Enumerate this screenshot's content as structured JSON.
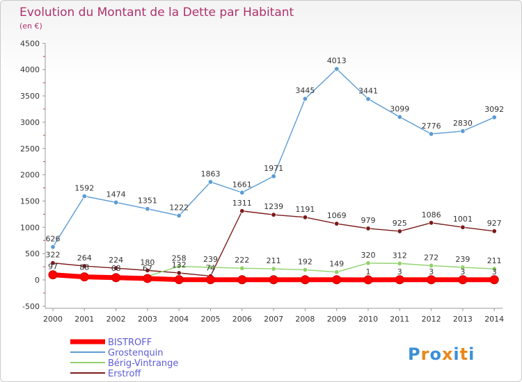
{
  "chart_data": {
    "type": "line",
    "title": "Evolution du Montant de la Dette par Habitant",
    "subtitle": "(en €)",
    "xlabel": "",
    "ylabel": "",
    "categories": [
      "2000",
      "2001",
      "2002",
      "2003",
      "2004",
      "2005",
      "2006",
      "2007",
      "2008",
      "2009",
      "2010",
      "2011",
      "2012",
      "2013",
      "2014"
    ],
    "ylim": [
      -500,
      4500
    ],
    "yticks": [
      -500,
      0,
      500,
      1000,
      1500,
      2000,
      2500,
      3000,
      3500,
      4000,
      4500
    ],
    "grid": false,
    "legend_position": "bottom-left",
    "series": [
      {
        "name": "BISTROFF",
        "color": "#ff0000",
        "values": [
          97,
          58,
          43,
          27,
          5,
          4,
          3,
          3,
          3,
          3,
          1,
          3,
          3,
          3,
          3
        ]
      },
      {
        "name": "Grostenquin",
        "color": "#5b9bd5",
        "values": [
          626,
          1592,
          1474,
          1351,
          1222,
          1863,
          1661,
          1971,
          3445,
          4013,
          3441,
          3099,
          2776,
          2830,
          3092
        ]
      },
      {
        "name": "Bérig-Vintrange",
        "color": "#8fd16a",
        "values": [
          97,
          88,
          68,
          67,
          258,
          239,
          222,
          211,
          192,
          149,
          320,
          312,
          272,
          239,
          211
        ]
      },
      {
        "name": "Erstroff",
        "color": "#7b1a1a",
        "values": [
          322,
          264,
          224,
          180,
          132,
          74,
          1311,
          1239,
          1191,
          1069,
          979,
          925,
          1086,
          1001,
          927
        ]
      }
    ],
    "data_labels": {
      "BISTROFF": [
        "",
        "",
        "",
        "",
        "",
        "",
        "",
        "",
        "",
        "",
        "1",
        "3",
        "3",
        "3",
        "3"
      ],
      "Grostenquin": [
        "626",
        "1592",
        "1474",
        "1351",
        "1222",
        "1863",
        "1661",
        "1971",
        "3445",
        "4013",
        "3441",
        "3099",
        "2776",
        "2830",
        "3092"
      ],
      "Bérig-Vintrange": [
        "97",
        "88",
        "68",
        "67",
        "258",
        "239",
        "222",
        "211",
        "192",
        "149",
        "320",
        "312",
        "272",
        "239",
        "211"
      ],
      "Erstroff": [
        "322",
        "264",
        "224",
        "180",
        "132",
        "74",
        "1311",
        "1239",
        "1191",
        "1069",
        "979",
        "925",
        "1086",
        "1001",
        "927"
      ]
    }
  },
  "logo": {
    "text": "Proxiti",
    "colors": [
      "#3a8fd6",
      "#e8881a",
      "#3a8fd6",
      "#e8881a",
      "#3a8fd6",
      "#e8881a",
      "#3a8fd6"
    ]
  }
}
